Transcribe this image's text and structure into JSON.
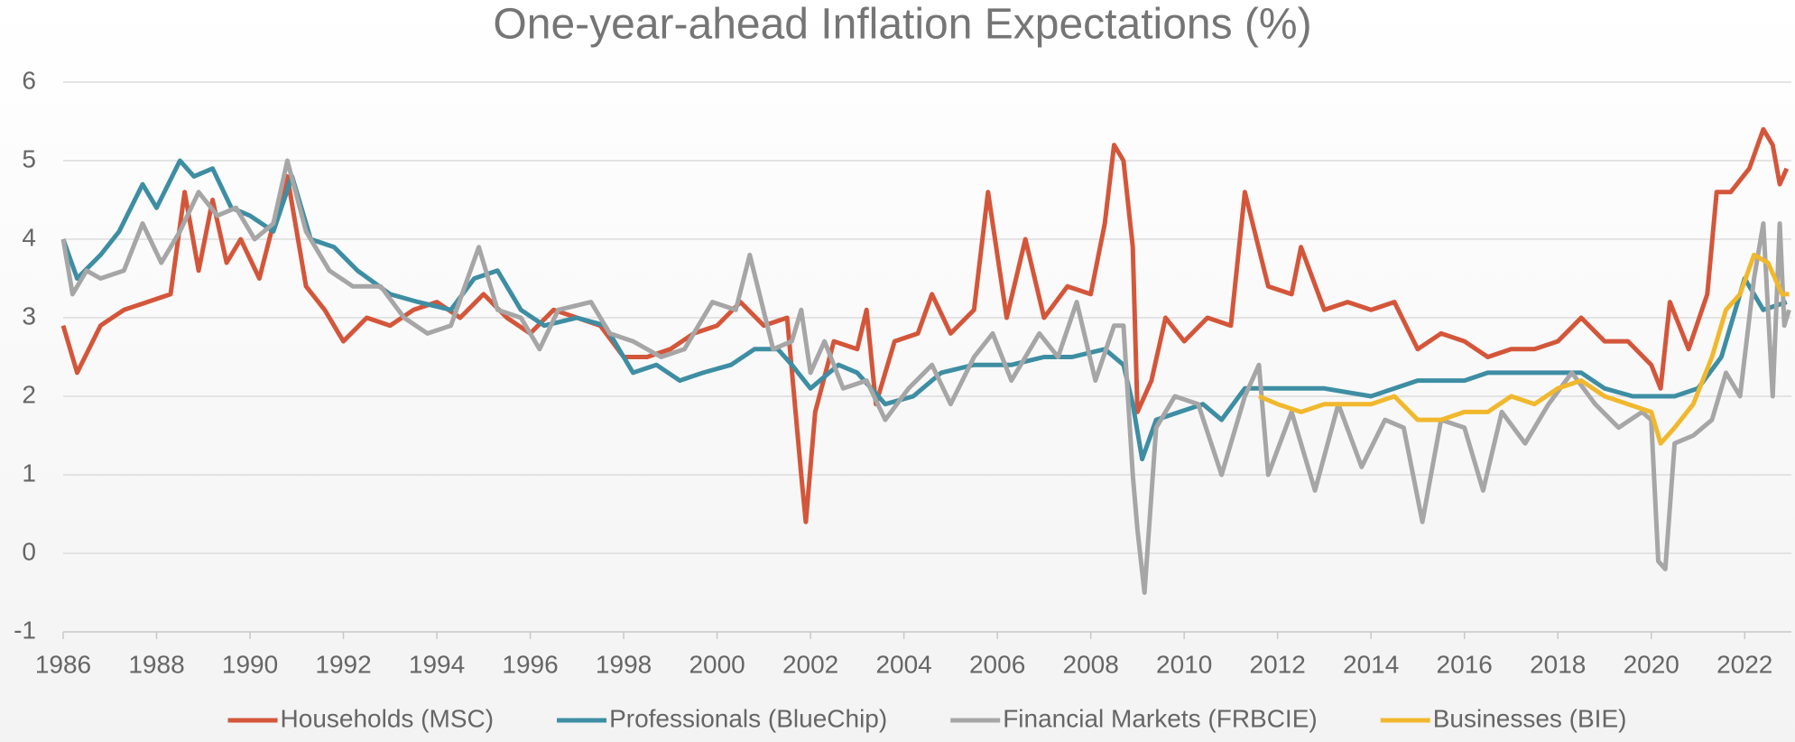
{
  "chart_data": {
    "type": "line",
    "title": "One-year-ahead Inflation Expectations (%)",
    "xlim": [
      1986,
      2023
    ],
    "ylim": [
      -1,
      6
    ],
    "xticks": [
      1986,
      1988,
      1990,
      1992,
      1994,
      1996,
      1998,
      2000,
      2002,
      2004,
      2006,
      2008,
      2010,
      2012,
      2014,
      2016,
      2018,
      2020,
      2022
    ],
    "yticks": [
      -1,
      0,
      1,
      2,
      3,
      4,
      5,
      6
    ],
    "grid": true,
    "legend": "bottom",
    "series": [
      {
        "name": "Households (MSC)",
        "color": "#d4563a",
        "x": [
          1986,
          1986.3,
          1986.8,
          1987.3,
          1987.8,
          1988.3,
          1988.6,
          1988.9,
          1989.2,
          1989.5,
          1989.8,
          1990.2,
          1990.5,
          1990.8,
          1991.2,
          1991.6,
          1992,
          1992.5,
          1993,
          1993.5,
          1994,
          1994.5,
          1995,
          1995.5,
          1996,
          1996.5,
          1997,
          1997.5,
          1998,
          1998.5,
          1999,
          1999.5,
          2000,
          2000.5,
          2001,
          2001.5,
          2001.8,
          2001.9,
          2002.1,
          2002.5,
          2003,
          2003.2,
          2003.4,
          2003.8,
          2004.3,
          2004.6,
          2005,
          2005.5,
          2005.8,
          2006.2,
          2006.6,
          2007,
          2007.5,
          2008,
          2008.3,
          2008.5,
          2008.7,
          2008.9,
          2009,
          2009.3,
          2009.6,
          2010,
          2010.5,
          2011,
          2011.3,
          2011.8,
          2012.3,
          2012.5,
          2013,
          2013.5,
          2014,
          2014.5,
          2015,
          2015.5,
          2016,
          2016.5,
          2017,
          2017.5,
          2018,
          2018.5,
          2019,
          2019.5,
          2020,
          2020.2,
          2020.4,
          2020.8,
          2021.2,
          2021.4,
          2021.7,
          2022.1,
          2022.4,
          2022.6,
          2022.75,
          2022.9
        ],
        "values": [
          2.9,
          2.3,
          2.9,
          3.1,
          3.2,
          3.3,
          4.6,
          3.6,
          4.5,
          3.7,
          4.0,
          3.5,
          4.2,
          4.8,
          3.4,
          3.1,
          2.7,
          3.0,
          2.9,
          3.1,
          3.2,
          3.0,
          3.3,
          3.0,
          2.8,
          3.1,
          3.0,
          2.9,
          2.5,
          2.5,
          2.6,
          2.8,
          2.9,
          3.2,
          2.9,
          3.0,
          1.0,
          0.4,
          1.8,
          2.7,
          2.6,
          3.1,
          1.9,
          2.7,
          2.8,
          3.3,
          2.8,
          3.1,
          4.6,
          3.0,
          4.0,
          3.0,
          3.4,
          3.3,
          4.2,
          5.2,
          5.0,
          3.9,
          1.8,
          2.2,
          3.0,
          2.7,
          3.0,
          2.9,
          4.6,
          3.4,
          3.3,
          3.9,
          3.1,
          3.2,
          3.1,
          3.2,
          2.6,
          2.8,
          2.7,
          2.5,
          2.6,
          2.6,
          2.7,
          3.0,
          2.7,
          2.7,
          2.4,
          2.1,
          3.2,
          2.6,
          3.3,
          4.6,
          4.6,
          4.9,
          5.4,
          5.2,
          4.7,
          4.9
        ]
      },
      {
        "name": "Professionals (BlueChip)",
        "color": "#3e8ea3",
        "x": [
          1986,
          1986.3,
          1986.8,
          1987.2,
          1987.7,
          1988,
          1988.5,
          1988.8,
          1989.2,
          1989.6,
          1990,
          1990.5,
          1990.9,
          1991.3,
          1991.8,
          1992.3,
          1993,
          1993.6,
          1994.3,
          1994.8,
          1995.3,
          1995.8,
          1996.3,
          1997,
          1997.6,
          1998.2,
          1998.7,
          1999.2,
          1999.7,
          2000.3,
          2000.8,
          2001.3,
          2001.6,
          2002,
          2002.6,
          2003,
          2003.6,
          2004.2,
          2004.8,
          2005.5,
          2006.3,
          2007,
          2007.6,
          2008.3,
          2008.7,
          2008.9,
          2009.1,
          2009.4,
          2009.9,
          2010.4,
          2010.8,
          2011.3,
          2012,
          2013,
          2014,
          2015,
          2016,
          2016.5,
          2017.5,
          2018.5,
          2019,
          2019.6,
          2020.5,
          2021,
          2021.5,
          2022,
          2022.4,
          2022.9
        ],
        "values": [
          4.0,
          3.5,
          3.8,
          4.1,
          4.7,
          4.4,
          5.0,
          4.8,
          4.9,
          4.4,
          4.3,
          4.1,
          4.8,
          4.0,
          3.9,
          3.6,
          3.3,
          3.2,
          3.1,
          3.5,
          3.6,
          3.1,
          2.9,
          3.0,
          2.9,
          2.3,
          2.4,
          2.2,
          2.3,
          2.4,
          2.6,
          2.6,
          2.4,
          2.1,
          2.4,
          2.3,
          1.9,
          2.0,
          2.3,
          2.4,
          2.4,
          2.5,
          2.5,
          2.6,
          2.4,
          1.9,
          1.2,
          1.7,
          1.8,
          1.9,
          1.7,
          2.1,
          2.1,
          2.1,
          2.0,
          2.2,
          2.2,
          2.3,
          2.3,
          2.3,
          2.1,
          2.0,
          2.0,
          2.1,
          2.5,
          3.5,
          3.1,
          3.2
        ]
      },
      {
        "name": "Financial Markets (FRBCIE)",
        "color": "#a6a6a6",
        "x": [
          1986,
          1986.2,
          1986.5,
          1986.8,
          1987.3,
          1987.7,
          1988.1,
          1988.5,
          1988.9,
          1989.3,
          1989.7,
          1990.1,
          1990.5,
          1990.8,
          1991.2,
          1991.7,
          1992.2,
          1992.8,
          1993.3,
          1993.8,
          1994.3,
          1994.9,
          1995.3,
          1995.8,
          1996.2,
          1996.6,
          1997.3,
          1997.7,
          1998.2,
          1998.8,
          1999.3,
          1999.9,
          2000.4,
          2000.7,
          2001.2,
          2001.6,
          2001.8,
          2002,
          2002.3,
          2002.7,
          2003.2,
          2003.6,
          2004.1,
          2004.6,
          2005,
          2005.5,
          2005.9,
          2006.3,
          2006.9,
          2007.3,
          2007.7,
          2008.1,
          2008.5,
          2008.7,
          2008.9,
          2009,
          2009.15,
          2009.4,
          2009.8,
          2010.3,
          2010.8,
          2011.3,
          2011.6,
          2011.8,
          2012.3,
          2012.8,
          2013.3,
          2013.8,
          2014.3,
          2014.7,
          2015.1,
          2015.5,
          2016,
          2016.4,
          2016.8,
          2017.3,
          2017.8,
          2018.3,
          2018.8,
          2019.3,
          2019.8,
          2020,
          2020.15,
          2020.3,
          2020.5,
          2020.9,
          2021.3,
          2021.6,
          2021.9,
          2022.2,
          2022.4,
          2022.6,
          2022.75,
          2022.85,
          2022.95
        ],
        "values": [
          4.0,
          3.3,
          3.6,
          3.5,
          3.6,
          4.2,
          3.7,
          4.1,
          4.6,
          4.3,
          4.4,
          4.0,
          4.2,
          5.0,
          4.1,
          3.6,
          3.4,
          3.4,
          3.0,
          2.8,
          2.9,
          3.9,
          3.1,
          3.0,
          2.6,
          3.1,
          3.2,
          2.8,
          2.7,
          2.5,
          2.6,
          3.2,
          3.1,
          3.8,
          2.6,
          2.7,
          3.1,
          2.3,
          2.7,
          2.1,
          2.2,
          1.7,
          2.1,
          2.4,
          1.9,
          2.5,
          2.8,
          2.2,
          2.8,
          2.5,
          3.2,
          2.2,
          2.9,
          2.9,
          1.0,
          0.3,
          -0.5,
          1.6,
          2.0,
          1.9,
          1.0,
          2.0,
          2.4,
          1.0,
          1.8,
          0.8,
          1.9,
          1.1,
          1.7,
          1.6,
          0.4,
          1.7,
          1.6,
          0.8,
          1.8,
          1.4,
          1.9,
          2.3,
          1.9,
          1.6,
          1.8,
          1.7,
          -0.1,
          -0.2,
          1.4,
          1.5,
          1.7,
          2.3,
          2.0,
          3.5,
          4.2,
          2.0,
          4.2,
          2.9,
          3.1
        ]
      },
      {
        "name": "Businesses (BIE)",
        "color": "#f1b82d",
        "x": [
          2011.6,
          2012,
          2012.5,
          2013,
          2013.5,
          2014,
          2014.5,
          2015,
          2015.5,
          2016,
          2016.5,
          2017,
          2017.5,
          2018,
          2018.5,
          2019,
          2019.5,
          2020,
          2020.2,
          2020.5,
          2020.9,
          2021.3,
          2021.6,
          2021.9,
          2022.2,
          2022.5,
          2022.8,
          2022.95
        ],
        "values": [
          2.0,
          1.9,
          1.8,
          1.9,
          1.9,
          1.9,
          2.0,
          1.7,
          1.7,
          1.8,
          1.8,
          2.0,
          1.9,
          2.1,
          2.2,
          2.0,
          1.9,
          1.8,
          1.4,
          1.6,
          1.9,
          2.5,
          3.1,
          3.3,
          3.8,
          3.7,
          3.3,
          3.3
        ]
      }
    ]
  }
}
